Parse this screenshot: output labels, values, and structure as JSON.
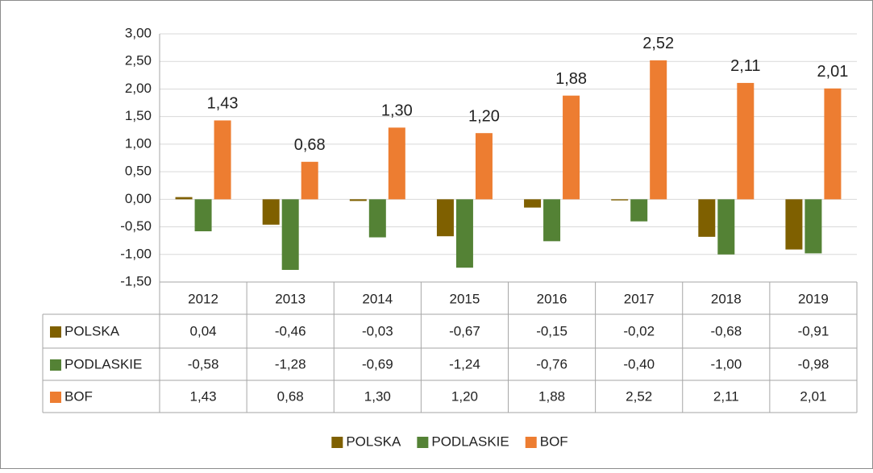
{
  "chart_data": {
    "type": "bar",
    "categories": [
      "2012",
      "2013",
      "2014",
      "2015",
      "2016",
      "2017",
      "2018",
      "2019"
    ],
    "series": [
      {
        "name": "POLSKA",
        "color": "#7f6000",
        "values": [
          0.04,
          -0.46,
          -0.03,
          -0.67,
          -0.15,
          -0.02,
          -0.68,
          -0.91
        ],
        "value_labels": [
          "0,04",
          "-0,46",
          "-0,03",
          "-0,67",
          "-0,15",
          "-0,02",
          "-0,68",
          "-0,91"
        ]
      },
      {
        "name": "PODLASKIE",
        "color": "#548235",
        "values": [
          -0.58,
          -1.28,
          -0.69,
          -1.24,
          -0.76,
          -0.4,
          -1.0,
          -0.98
        ],
        "value_labels": [
          "-0,58",
          "-1,28",
          "-0,69",
          "-1,24",
          "-0,76",
          "-0,40",
          "-1,00",
          "-0,98"
        ]
      },
      {
        "name": "BOF",
        "color": "#ed7d31",
        "values": [
          1.43,
          0.68,
          1.3,
          1.2,
          1.88,
          2.52,
          2.11,
          2.01
        ],
        "value_labels": [
          "1,43",
          "0,68",
          "1,30",
          "1,20",
          "1,88",
          "2,52",
          "2,11",
          "2,01"
        ]
      }
    ],
    "ylim": [
      -1.5,
      3
    ],
    "yticks": [
      {
        "value": -1.5,
        "label": "-1,50"
      },
      {
        "value": -1,
        "label": "-1,00"
      },
      {
        "value": -0.5,
        "label": "-0,50"
      },
      {
        "value": 0,
        "label": "0,00"
      },
      {
        "value": 0.5,
        "label": "0,50"
      },
      {
        "value": 1,
        "label": "1,00"
      },
      {
        "value": 1.5,
        "label": "1,50"
      },
      {
        "value": 2,
        "label": "2,00"
      },
      {
        "value": 2.5,
        "label": "2,50"
      },
      {
        "value": 3,
        "label": "3,00"
      }
    ],
    "grid": true,
    "data_labels_series": "BOF",
    "legend": "bottom",
    "data_table": true
  }
}
